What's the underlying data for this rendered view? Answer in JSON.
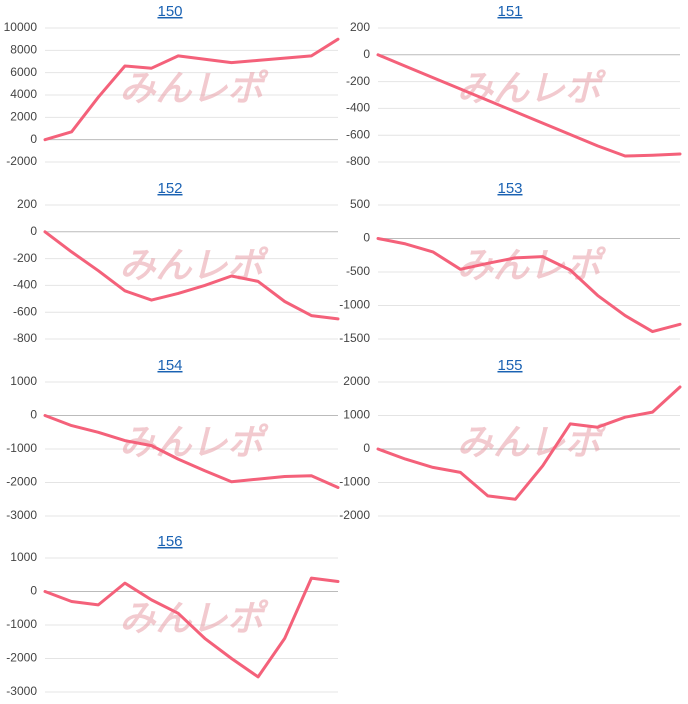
{
  "watermark": "みんレポ",
  "chart_data": [
    {
      "type": "line",
      "title": "150",
      "color": "#f4617a",
      "ylim": [
        -2000,
        10000
      ],
      "yticks": [
        10000,
        8000,
        6000,
        4000,
        2000,
        0,
        -2000
      ],
      "values": [
        0,
        700,
        3800,
        6600,
        6400,
        7500,
        7200,
        6900,
        7100,
        7300,
        7500,
        9000
      ]
    },
    {
      "type": "line",
      "title": "151",
      "color": "#f4617a",
      "ylim": [
        -800,
        200
      ],
      "yticks": [
        200,
        0,
        -200,
        -400,
        -600,
        -800
      ],
      "values": [
        0,
        -85,
        -170,
        -255,
        -340,
        -425,
        -510,
        -595,
        -680,
        -755,
        -750,
        -740
      ]
    },
    {
      "type": "line",
      "title": "152",
      "color": "#f4617a",
      "ylim": [
        -800,
        200
      ],
      "yticks": [
        200,
        0,
        -200,
        -400,
        -600,
        -800
      ],
      "values": [
        0,
        -150,
        -290,
        -440,
        -510,
        -460,
        -400,
        -330,
        -370,
        -520,
        -625,
        -650
      ]
    },
    {
      "type": "line",
      "title": "153",
      "color": "#f4617a",
      "ylim": [
        -1500,
        500
      ],
      "yticks": [
        500,
        0,
        -500,
        -1000,
        -1500
      ],
      "values": [
        0,
        -80,
        -200,
        -460,
        -370,
        -290,
        -270,
        -470,
        -850,
        -1150,
        -1390,
        -1280
      ]
    },
    {
      "type": "line",
      "title": "154",
      "color": "#f4617a",
      "ylim": [
        -3000,
        1000
      ],
      "yticks": [
        1000,
        0,
        -1000,
        -2000,
        -3000
      ],
      "values": [
        0,
        -300,
        -500,
        -750,
        -900,
        -1300,
        -1650,
        -1980,
        -1900,
        -1820,
        -1800,
        -2150
      ]
    },
    {
      "type": "line",
      "title": "155",
      "color": "#f4617a",
      "ylim": [
        -2000,
        2000
      ],
      "yticks": [
        2000,
        1000,
        0,
        -1000,
        -2000
      ],
      "values": [
        0,
        -300,
        -550,
        -700,
        -1400,
        -1500,
        -500,
        750,
        650,
        950,
        1100,
        1850
      ]
    },
    {
      "type": "line",
      "title": "156",
      "color": "#f4617a",
      "ylim": [
        -3000,
        1000
      ],
      "yticks": [
        1000,
        0,
        -1000,
        -2000,
        -3000
      ],
      "values": [
        0,
        -300,
        -400,
        250,
        -250,
        -650,
        -1400,
        -2000,
        -2550,
        -1400,
        400,
        300
      ]
    }
  ]
}
